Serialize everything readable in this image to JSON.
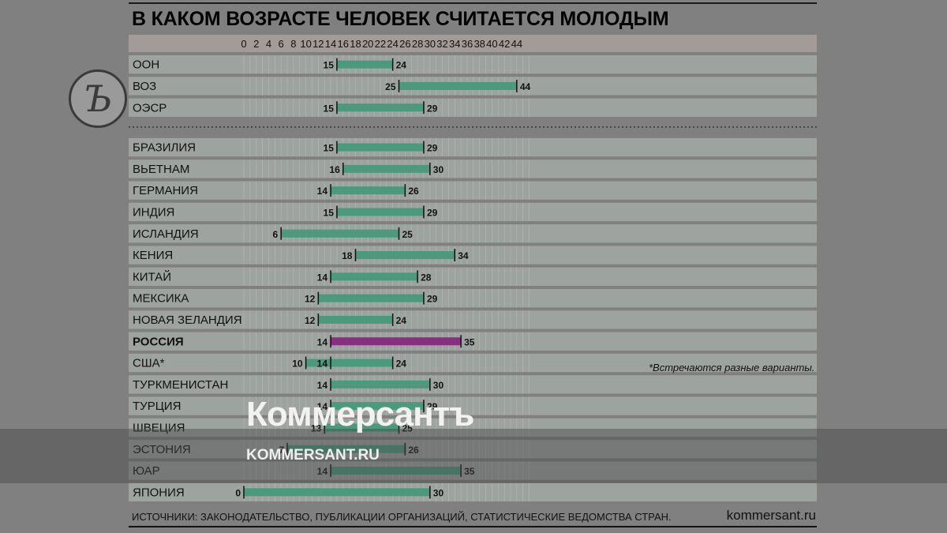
{
  "title": "В КАКОМ ВОЗРАСТЕ ЧЕЛОВЕК СЧИТАЕТСЯ МОЛОДЫМ",
  "logo_glyph": "Ъ",
  "watermark": {
    "brand": "Коммерсантъ",
    "url": "KOMMERSANT.RU"
  },
  "footnote": "ИСТОЧНИКИ: ЗАКОНОДАТЕЛЬСТВО, ПУБЛИКАЦИИ ОРГАНИЗАЦИЙ, СТАТИСТИЧЕСКИЕ ВЕДОМСТВА СТРАН.",
  "site": "kommersant.ru",
  "note": "*Встречаются разные варианты.",
  "colors": {
    "bar": "#4a9a7e",
    "highlight": "#8a2f80",
    "row": "#9da39f",
    "axis_band": "#a39b97",
    "grid": "#b8b8b8"
  },
  "chart_data": {
    "type": "bar",
    "orientation": "horizontal-range",
    "xlim": [
      0,
      46
    ],
    "xticks": [
      "0",
      "2",
      "4",
      "6",
      "8",
      "10",
      "12",
      "14",
      "16",
      "18",
      "20",
      "22",
      "24",
      "26",
      "28",
      "30",
      "32",
      "34",
      "36",
      "38",
      "40",
      "42",
      "44"
    ],
    "groups": [
      {
        "rows": [
          {
            "label": "ООН",
            "from": 15,
            "to": 24
          },
          {
            "label": "ВОЗ",
            "from": 25,
            "to": 44
          },
          {
            "label": "ОЭСР",
            "from": 15,
            "to": 29
          }
        ]
      },
      {
        "rows": [
          {
            "label": "БРАЗИЛИЯ",
            "from": 15,
            "to": 29
          },
          {
            "label": "ВЬЕТНАМ",
            "from": 16,
            "to": 30
          },
          {
            "label": "ГЕРМАНИЯ",
            "from": 14,
            "to": 26
          },
          {
            "label": "ИНДИЯ",
            "from": 15,
            "to": 29
          },
          {
            "label": "ИСЛАНДИЯ",
            "from": 6,
            "to": 25
          },
          {
            "label": "КЕНИЯ",
            "from": 18,
            "to": 34
          },
          {
            "label": "КИТАЙ",
            "from": 14,
            "to": 28
          },
          {
            "label": "МЕКСИКА",
            "from": 12,
            "to": 29
          },
          {
            "label": "НОВАЯ ЗЕЛАНДИЯ",
            "from": 12,
            "to": 24
          },
          {
            "label": "РОССИЯ",
            "from": 14,
            "to": 35,
            "highlight": true
          },
          {
            "label": "США*",
            "from": 10,
            "to": 24,
            "alt_from": 14
          },
          {
            "label": "ТУРКМЕНИСТАН",
            "from": 14,
            "to": 30
          },
          {
            "label": "ТУРЦИЯ",
            "from": 14,
            "to": 29
          },
          {
            "label": "ШВЕЦИЯ",
            "from": 13,
            "to": 25
          },
          {
            "label": "ЭСТОНИЯ",
            "from": 7,
            "to": 26
          },
          {
            "label": "ЮАР",
            "from": 14,
            "to": 35
          },
          {
            "label": "ЯПОНИЯ",
            "from": 0,
            "to": 30
          }
        ]
      }
    ]
  }
}
